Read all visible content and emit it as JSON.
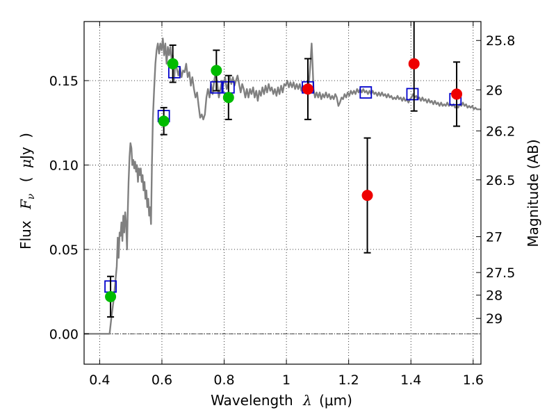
{
  "chart_data": {
    "type": "scatter",
    "title": "",
    "xlabel": "Wavelength λ (μm)",
    "xlabel_parts": {
      "text": "Wavelength",
      "symbol": "λ",
      "unit": "(μm)"
    },
    "ylabel": "Flux F_ν (μJy)",
    "ylabel_parts": {
      "text": "Flux",
      "symbol": "F",
      "subscript": "ν",
      "unit_open": "(",
      "unit_mu": "μ",
      "unit_rest": "Jy",
      "unit_close": ")"
    },
    "y2label": "Magnitude (AB)",
    "xlim": [
      0.35,
      1.625
    ],
    "ylim": [
      -0.018,
      0.185
    ],
    "xticks": [
      {
        "value": 0.4,
        "label": "0.4"
      },
      {
        "value": 0.6,
        "label": "0.6"
      },
      {
        "value": 0.8,
        "label": "0.8"
      },
      {
        "value": 1.0,
        "label": "1"
      },
      {
        "value": 1.2,
        "label": "1.2"
      },
      {
        "value": 1.4,
        "label": "1.4"
      },
      {
        "value": 1.6,
        "label": "1.6"
      }
    ],
    "yticks": [
      {
        "value": 0.0,
        "label": "0.00"
      },
      {
        "value": 0.05,
        "label": "0.05"
      },
      {
        "value": 0.1,
        "label": "0.10"
      },
      {
        "value": 0.15,
        "label": "0.15"
      }
    ],
    "y2ticks": [
      {
        "value": 25.8,
        "label": "25.8"
      },
      {
        "value": 26.0,
        "label": "26"
      },
      {
        "value": 26.2,
        "label": "26.2"
      },
      {
        "value": 26.5,
        "label": "26.5"
      },
      {
        "value": 27.0,
        "label": "27"
      },
      {
        "value": 27.5,
        "label": "27.5"
      },
      {
        "value": 28.0,
        "label": "28"
      },
      {
        "value": 29.0,
        "label": "29"
      }
    ],
    "grid": true,
    "zero_line": true,
    "series": [
      {
        "kind": "line",
        "color": "#808080",
        "points": [
          [
            0.35,
            0.0
          ],
          [
            0.42,
            0.0
          ],
          [
            0.432,
            0.0
          ],
          [
            0.438,
            0.01
          ],
          [
            0.445,
            0.02
          ],
          [
            0.45,
            0.03
          ],
          [
            0.455,
            0.04
          ],
          [
            0.458,
            0.057
          ],
          [
            0.461,
            0.045
          ],
          [
            0.464,
            0.06
          ],
          [
            0.467,
            0.058
          ],
          [
            0.47,
            0.066
          ],
          [
            0.473,
            0.055
          ],
          [
            0.476,
            0.07
          ],
          [
            0.479,
            0.06
          ],
          [
            0.482,
            0.072
          ],
          [
            0.485,
            0.065
          ],
          [
            0.488,
            0.05
          ],
          [
            0.49,
            0.07
          ],
          [
            0.493,
            0.09
          ],
          [
            0.496,
            0.105
          ],
          [
            0.499,
            0.113
          ],
          [
            0.502,
            0.11
          ],
          [
            0.505,
            0.1
          ],
          [
            0.508,
            0.103
          ],
          [
            0.511,
            0.098
          ],
          [
            0.514,
            0.102
          ],
          [
            0.517,
            0.096
          ],
          [
            0.52,
            0.1
          ],
          [
            0.523,
            0.09
          ],
          [
            0.526,
            0.098
          ],
          [
            0.529,
            0.094
          ],
          [
            0.532,
            0.098
          ],
          [
            0.535,
            0.09
          ],
          [
            0.538,
            0.094
          ],
          [
            0.541,
            0.085
          ],
          [
            0.544,
            0.09
          ],
          [
            0.547,
            0.08
          ],
          [
            0.55,
            0.085
          ],
          [
            0.553,
            0.075
          ],
          [
            0.556,
            0.08
          ],
          [
            0.559,
            0.07
          ],
          [
            0.562,
            0.075
          ],
          [
            0.565,
            0.065
          ],
          [
            0.568,
            0.1
          ],
          [
            0.571,
            0.128
          ],
          [
            0.575,
            0.145
          ],
          [
            0.579,
            0.16
          ],
          [
            0.583,
            0.168
          ],
          [
            0.587,
            0.172
          ],
          [
            0.591,
            0.166
          ],
          [
            0.595,
            0.172
          ],
          [
            0.599,
            0.168
          ],
          [
            0.603,
            0.175
          ],
          [
            0.607,
            0.165
          ],
          [
            0.611,
            0.172
          ],
          [
            0.615,
            0.16
          ],
          [
            0.619,
            0.17
          ],
          [
            0.623,
            0.165
          ],
          [
            0.627,
            0.17
          ],
          [
            0.631,
            0.163
          ],
          [
            0.635,
            0.165
          ],
          [
            0.639,
            0.15
          ],
          [
            0.643,
            0.16
          ],
          [
            0.648,
            0.157
          ],
          [
            0.653,
            0.153
          ],
          [
            0.658,
            0.158
          ],
          [
            0.663,
            0.152
          ],
          [
            0.668,
            0.156
          ],
          [
            0.673,
            0.155
          ],
          [
            0.678,
            0.16
          ],
          [
            0.683,
            0.152
          ],
          [
            0.688,
            0.155
          ],
          [
            0.693,
            0.147
          ],
          [
            0.698,
            0.152
          ],
          [
            0.703,
            0.145
          ],
          [
            0.708,
            0.14
          ],
          [
            0.713,
            0.143
          ],
          [
            0.718,
            0.135
          ],
          [
            0.723,
            0.128
          ],
          [
            0.728,
            0.13
          ],
          [
            0.733,
            0.127
          ],
          [
            0.738,
            0.13
          ],
          [
            0.743,
            0.14
          ],
          [
            0.748,
            0.145
          ],
          [
            0.753,
            0.14
          ],
          [
            0.758,
            0.148
          ],
          [
            0.763,
            0.142
          ],
          [
            0.768,
            0.15
          ],
          [
            0.773,
            0.155
          ],
          [
            0.778,
            0.148
          ],
          [
            0.783,
            0.14
          ],
          [
            0.788,
            0.145
          ],
          [
            0.793,
            0.15
          ],
          [
            0.798,
            0.148
          ],
          [
            0.803,
            0.152
          ],
          [
            0.808,
            0.145
          ],
          [
            0.813,
            0.148
          ],
          [
            0.818,
            0.152
          ],
          [
            0.823,
            0.148
          ],
          [
            0.828,
            0.152
          ],
          [
            0.833,
            0.147
          ],
          [
            0.838,
            0.15
          ],
          [
            0.843,
            0.153
          ],
          [
            0.848,
            0.148
          ],
          [
            0.853,
            0.143
          ],
          [
            0.858,
            0.148
          ],
          [
            0.863,
            0.145
          ],
          [
            0.868,
            0.14
          ],
          [
            0.873,
            0.145
          ],
          [
            0.878,
            0.14
          ],
          [
            0.883,
            0.145
          ],
          [
            0.888,
            0.142
          ],
          [
            0.893,
            0.146
          ],
          [
            0.898,
            0.14
          ],
          [
            0.903,
            0.144
          ],
          [
            0.908,
            0.138
          ],
          [
            0.913,
            0.144
          ],
          [
            0.918,
            0.141
          ],
          [
            0.923,
            0.146
          ],
          [
            0.928,
            0.142
          ],
          [
            0.933,
            0.147
          ],
          [
            0.938,
            0.143
          ],
          [
            0.943,
            0.148
          ],
          [
            0.948,
            0.144
          ],
          [
            0.953,
            0.146
          ],
          [
            0.958,
            0.142
          ],
          [
            0.963,
            0.145
          ],
          [
            0.968,
            0.141
          ],
          [
            0.973,
            0.146
          ],
          [
            0.978,
            0.142
          ],
          [
            0.983,
            0.147
          ],
          [
            0.988,
            0.143
          ],
          [
            0.993,
            0.148
          ],
          [
            0.998,
            0.147
          ],
          [
            1.003,
            0.15
          ],
          [
            1.008,
            0.146
          ],
          [
            1.013,
            0.149
          ],
          [
            1.018,
            0.146
          ],
          [
            1.023,
            0.149
          ],
          [
            1.028,
            0.145
          ],
          [
            1.033,
            0.148
          ],
          [
            1.038,
            0.145
          ],
          [
            1.043,
            0.148
          ],
          [
            1.048,
            0.144
          ],
          [
            1.053,
            0.147
          ],
          [
            1.058,
            0.143
          ],
          [
            1.063,
            0.147
          ],
          [
            1.068,
            0.145
          ],
          [
            1.073,
            0.15
          ],
          [
            1.077,
            0.16
          ],
          [
            1.081,
            0.172
          ],
          [
            1.084,
            0.16
          ],
          [
            1.087,
            0.145
          ],
          [
            1.092,
            0.14
          ],
          [
            1.097,
            0.143
          ],
          [
            1.102,
            0.14
          ],
          [
            1.107,
            0.143
          ],
          [
            1.112,
            0.139
          ],
          [
            1.117,
            0.142
          ],
          [
            1.122,
            0.14
          ],
          [
            1.127,
            0.143
          ],
          [
            1.132,
            0.14
          ],
          [
            1.137,
            0.142
          ],
          [
            1.142,
            0.139
          ],
          [
            1.147,
            0.141
          ],
          [
            1.152,
            0.139
          ],
          [
            1.157,
            0.142
          ],
          [
            1.162,
            0.14
          ],
          [
            1.167,
            0.135
          ],
          [
            1.172,
            0.137
          ],
          [
            1.177,
            0.14
          ],
          [
            1.182,
            0.139
          ],
          [
            1.187,
            0.142
          ],
          [
            1.192,
            0.14
          ],
          [
            1.197,
            0.143
          ],
          [
            1.202,
            0.141
          ],
          [
            1.207,
            0.144
          ],
          [
            1.212,
            0.142
          ],
          [
            1.217,
            0.144
          ],
          [
            1.222,
            0.142
          ],
          [
            1.227,
            0.145
          ],
          [
            1.232,
            0.143
          ],
          [
            1.237,
            0.145
          ],
          [
            1.242,
            0.143
          ],
          [
            1.247,
            0.145
          ],
          [
            1.252,
            0.143
          ],
          [
            1.257,
            0.144
          ],
          [
            1.262,
            0.142
          ],
          [
            1.267,
            0.144
          ],
          [
            1.272,
            0.142
          ],
          [
            1.277,
            0.144
          ],
          [
            1.282,
            0.142
          ],
          [
            1.287,
            0.143
          ],
          [
            1.292,
            0.141
          ],
          [
            1.297,
            0.143
          ],
          [
            1.302,
            0.141
          ],
          [
            1.307,
            0.143
          ],
          [
            1.312,
            0.141
          ],
          [
            1.317,
            0.142
          ],
          [
            1.322,
            0.14
          ],
          [
            1.327,
            0.142
          ],
          [
            1.332,
            0.14
          ],
          [
            1.337,
            0.141
          ],
          [
            1.342,
            0.139
          ],
          [
            1.347,
            0.14
          ],
          [
            1.352,
            0.139
          ],
          [
            1.357,
            0.141
          ],
          [
            1.362,
            0.139
          ],
          [
            1.367,
            0.14
          ],
          [
            1.372,
            0.138
          ],
          [
            1.377,
            0.14
          ],
          [
            1.382,
            0.138
          ],
          [
            1.387,
            0.139
          ],
          [
            1.392,
            0.137
          ],
          [
            1.397,
            0.139
          ],
          [
            1.402,
            0.14
          ],
          [
            1.407,
            0.142
          ],
          [
            1.412,
            0.14
          ],
          [
            1.417,
            0.141
          ],
          [
            1.422,
            0.139
          ],
          [
            1.427,
            0.14
          ],
          [
            1.432,
            0.138
          ],
          [
            1.437,
            0.14
          ],
          [
            1.442,
            0.138
          ],
          [
            1.447,
            0.139
          ],
          [
            1.452,
            0.137
          ],
          [
            1.457,
            0.139
          ],
          [
            1.462,
            0.137
          ],
          [
            1.467,
            0.138
          ],
          [
            1.472,
            0.136
          ],
          [
            1.477,
            0.138
          ],
          [
            1.482,
            0.136
          ],
          [
            1.487,
            0.137
          ],
          [
            1.492,
            0.135
          ],
          [
            1.497,
            0.137
          ],
          [
            1.502,
            0.135
          ],
          [
            1.507,
            0.136
          ],
          [
            1.512,
            0.135
          ],
          [
            1.517,
            0.137
          ],
          [
            1.522,
            0.135
          ],
          [
            1.527,
            0.136
          ],
          [
            1.532,
            0.135
          ],
          [
            1.537,
            0.136
          ],
          [
            1.542,
            0.134
          ],
          [
            1.547,
            0.135
          ],
          [
            1.552,
            0.134
          ],
          [
            1.557,
            0.136
          ],
          [
            1.562,
            0.135
          ],
          [
            1.567,
            0.137
          ],
          [
            1.572,
            0.135
          ],
          [
            1.577,
            0.136
          ],
          [
            1.582,
            0.134
          ],
          [
            1.587,
            0.135
          ],
          [
            1.592,
            0.134
          ],
          [
            1.597,
            0.135
          ],
          [
            1.602,
            0.133
          ],
          [
            1.607,
            0.134
          ],
          [
            1.612,
            0.133
          ],
          [
            1.62,
            0.133
          ],
          [
            1.625,
            0.133
          ]
        ]
      },
      {
        "kind": "box-markers",
        "color": "#0000cc",
        "points": [
          {
            "x": 0.435,
            "y": 0.028
          },
          {
            "x": 0.606,
            "y": 0.129
          },
          {
            "x": 0.64,
            "y": 0.155
          },
          {
            "x": 0.775,
            "y": 0.146
          },
          {
            "x": 0.814,
            "y": 0.146
          },
          {
            "x": 1.069,
            "y": 0.146
          },
          {
            "x": 1.255,
            "y": 0.143
          },
          {
            "x": 1.405,
            "y": 0.142
          },
          {
            "x": 1.543,
            "y": 0.139
          }
        ]
      },
      {
        "kind": "points-errorbars",
        "color": "#00bb00",
        "points": [
          {
            "x": 0.435,
            "y": 0.022,
            "err": 0.012
          },
          {
            "x": 0.606,
            "y": 0.126,
            "err": 0.008
          },
          {
            "x": 0.635,
            "y": 0.16,
            "err": 0.011
          },
          {
            "x": 0.775,
            "y": 0.156,
            "err": 0.012
          },
          {
            "x": 0.814,
            "y": 0.14,
            "err": 0.013
          }
        ]
      },
      {
        "kind": "points-errorbars",
        "color": "#ee0000",
        "points": [
          {
            "x": 1.069,
            "y": 0.145,
            "err": 0.018
          },
          {
            "x": 1.26,
            "y": 0.082,
            "err": 0.034
          },
          {
            "x": 1.41,
            "y": 0.16,
            "err": 0.028
          },
          {
            "x": 1.547,
            "y": 0.142,
            "err": 0.019
          }
        ]
      }
    ]
  }
}
